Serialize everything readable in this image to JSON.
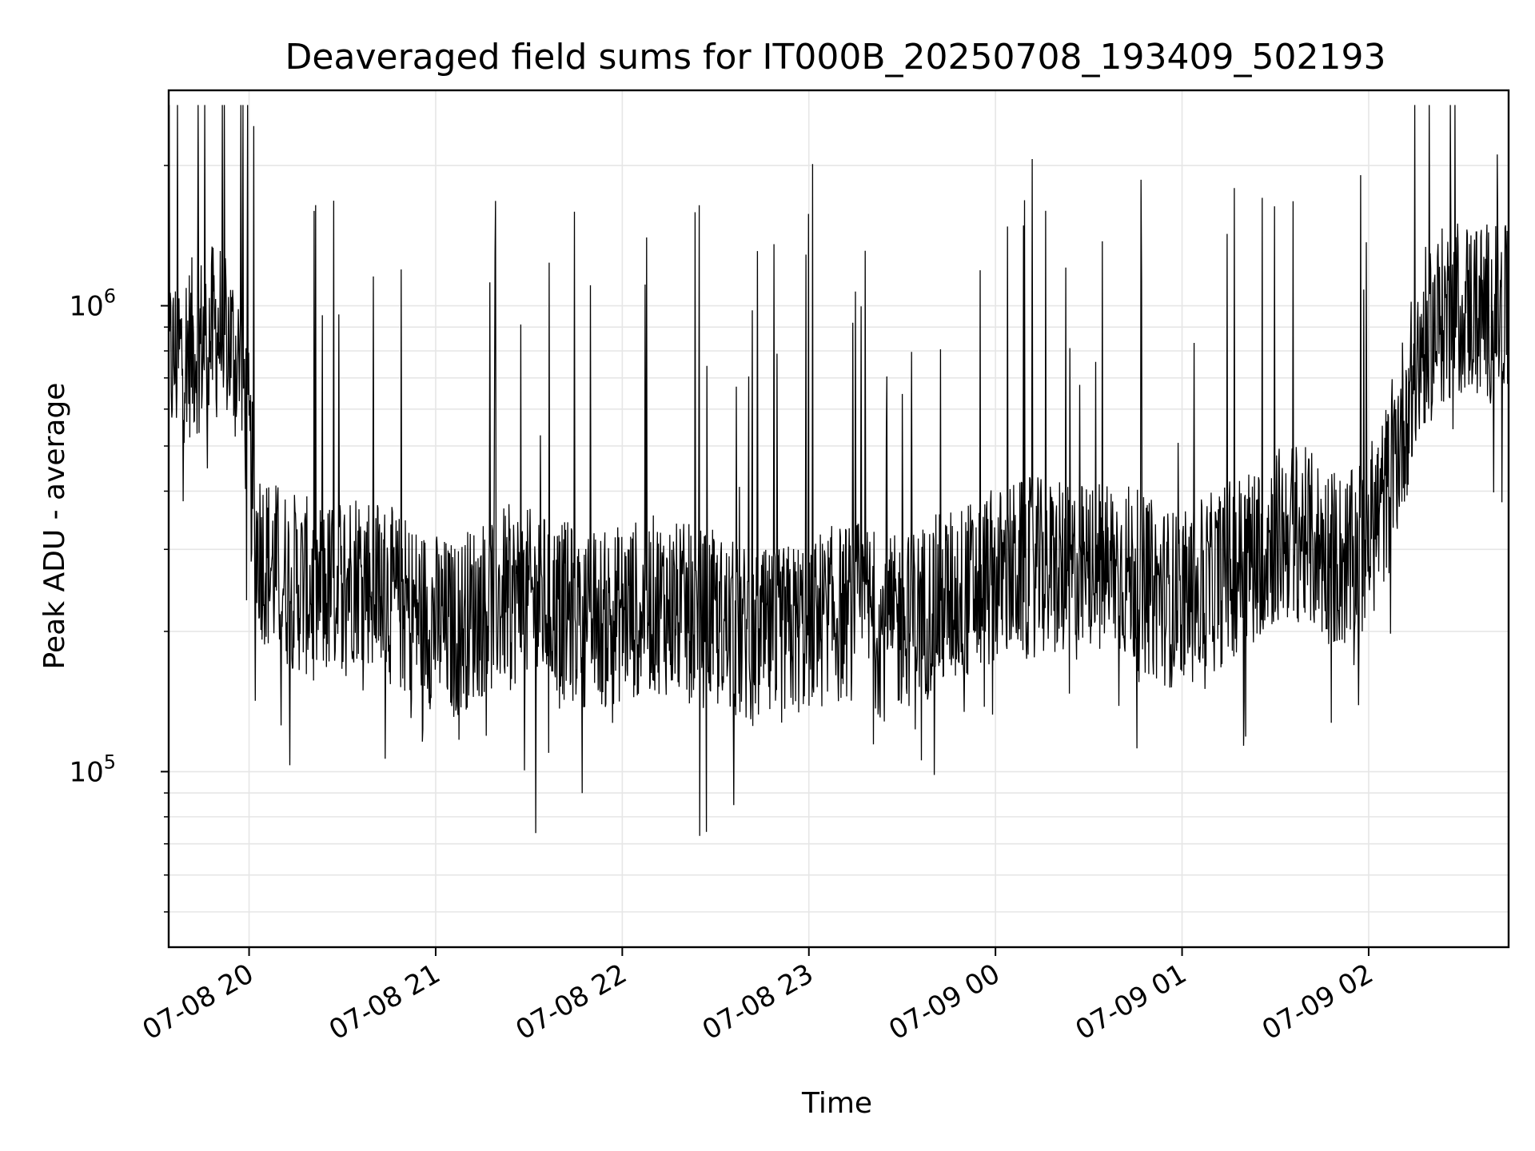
{
  "chart_data": {
    "type": "line",
    "title": "Deaveraged field sums for IT000B_20250708_193409_502193",
    "xlabel": "Time",
    "ylabel": "Peak ADU - average",
    "yscale": "log",
    "x_range": [
      "2025-07-08 19:34:09",
      "2025-07-09 02:45"
    ],
    "ylim": [
      42000,
      2900000
    ],
    "x_ticks": [
      {
        "label": "07-08 20",
        "hour": 20
      },
      {
        "label": "07-08 21",
        "hour": 21
      },
      {
        "label": "07-08 22",
        "hour": 22
      },
      {
        "label": "07-08 23",
        "hour": 23
      },
      {
        "label": "07-09 00",
        "hour": 24
      },
      {
        "label": "07-09 01",
        "hour": 25
      },
      {
        "label": "07-09 02",
        "hour": 26
      }
    ],
    "y_ticks": [
      {
        "base": "10",
        "exp": "5",
        "value": 100000
      },
      {
        "base": "10",
        "exp": "6",
        "value": 1000000
      }
    ],
    "grid": true,
    "line_color": "#000000",
    "grid_color": "#e6e6e6",
    "series": [
      {
        "x": [
          "19:34",
          "19:40",
          "19:46",
          "19:52",
          "19:58",
          "20:00",
          "20:02",
          "20:06",
          "20:12",
          "20:18",
          "20:24",
          "20:30",
          "20:36",
          "20:42",
          "20:48",
          "20:54",
          "21:00",
          "21:06",
          "21:12",
          "21:18",
          "21:24",
          "21:30",
          "21:36",
          "21:42",
          "21:48",
          "21:54",
          "22:00",
          "22:06",
          "22:12",
          "22:18",
          "22:24",
          "22:30",
          "22:36",
          "22:42",
          "22:48",
          "22:54",
          "23:00",
          "23:06",
          "23:12",
          "23:18",
          "23:24",
          "23:30",
          "23:36",
          "23:42",
          "23:48",
          "23:54",
          "00:00",
          "00:06",
          "00:12",
          "00:18",
          "00:24",
          "00:30",
          "00:36",
          "00:42",
          "00:48",
          "00:54",
          "01:00",
          "01:06",
          "01:12",
          "01:18",
          "01:24",
          "01:30",
          "01:36",
          "01:42",
          "01:48",
          "01:54",
          "02:00",
          "02:06",
          "02:12",
          "02:18",
          "02:24",
          "02:30",
          "02:36",
          "02:42"
        ],
        "y": [
          750000,
          800000,
          850000,
          900000,
          700000,
          500000,
          320000,
          280000,
          260000,
          250000,
          240000,
          260000,
          270000,
          250000,
          230000,
          220000,
          210000,
          200000,
          220000,
          230000,
          240000,
          235000,
          230000,
          220000,
          215000,
          210000,
          220000,
          225000,
          230000,
          220000,
          215000,
          210000,
          200000,
          195000,
          190000,
          200000,
          210000,
          215000,
          220000,
          225000,
          200000,
          210000,
          220000,
          230000,
          240000,
          250000,
          260000,
          270000,
          275000,
          270000,
          265000,
          270000,
          280000,
          270000,
          250000,
          240000,
          230000,
          245000,
          260000,
          280000,
          300000,
          320000,
          330000,
          310000,
          290000,
          280000,
          320000,
          400000,
          600000,
          850000,
          950000,
          1000000,
          980000,
          950000
        ]
      }
    ]
  }
}
